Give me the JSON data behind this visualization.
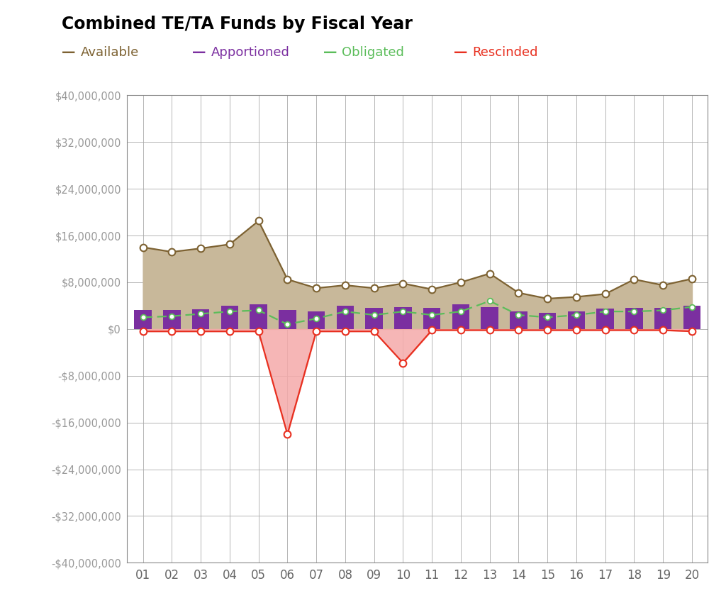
{
  "title": "Combined TE/TA Funds by Fiscal Year",
  "years": [
    "01",
    "02",
    "03",
    "04",
    "05",
    "06",
    "07",
    "08",
    "09",
    "10",
    "11",
    "12",
    "13",
    "14",
    "15",
    "16",
    "17",
    "18",
    "19",
    "20"
  ],
  "available": [
    14000000,
    13200000,
    13800000,
    14500000,
    18500000,
    8500000,
    7000000,
    7500000,
    7000000,
    7800000,
    6800000,
    8000000,
    9500000,
    6200000,
    5200000,
    5500000,
    6000000,
    8500000,
    7500000,
    8600000
  ],
  "apportioned": [
    3200000,
    3200000,
    3400000,
    4000000,
    4200000,
    3200000,
    3000000,
    4000000,
    3600000,
    3800000,
    3600000,
    4200000,
    3800000,
    3000000,
    2800000,
    3000000,
    3500000,
    3600000,
    3600000,
    4000000
  ],
  "obligated": [
    2000000,
    2200000,
    2600000,
    3000000,
    3200000,
    800000,
    1800000,
    3000000,
    2400000,
    3000000,
    2400000,
    3000000,
    4800000,
    2400000,
    2000000,
    2400000,
    3000000,
    3000000,
    3200000,
    3800000
  ],
  "rescinded": [
    -400000,
    -400000,
    -400000,
    -400000,
    -400000,
    -18000000,
    -400000,
    -400000,
    -400000,
    -5800000,
    -200000,
    -200000,
    -200000,
    -200000,
    -200000,
    -200000,
    -200000,
    -200000,
    -200000,
    -400000
  ],
  "available_color": "#7D6232",
  "available_fill": "#C8B89A",
  "apportioned_color": "#7B2FA0",
  "apportioned_fill": "#7B2FA0",
  "obligated_color": "#5BBD5A",
  "obligated_dash": [
    6,
    3
  ],
  "rescinded_color": "#E83020",
  "rescinded_fill": "#F5AAAA",
  "bg_color": "#FFFFFF",
  "grid_color": "#AAAAAA",
  "border_color": "#888888",
  "ytick_color": "#999999",
  "xtick_color": "#666666",
  "ylim": [
    -40000000,
    40000000
  ],
  "yticks": [
    -40000000,
    -32000000,
    -24000000,
    -16000000,
    -8000000,
    0,
    8000000,
    16000000,
    24000000,
    32000000,
    40000000
  ],
  "legend": [
    {
      "color": "#7D6232",
      "label": "Available"
    },
    {
      "color": "#7B2FA0",
      "label": "Apportioned"
    },
    {
      "color": "#5BBD5A",
      "label": "Obligated"
    },
    {
      "color": "#E83020",
      "label": "Rescinded"
    }
  ]
}
